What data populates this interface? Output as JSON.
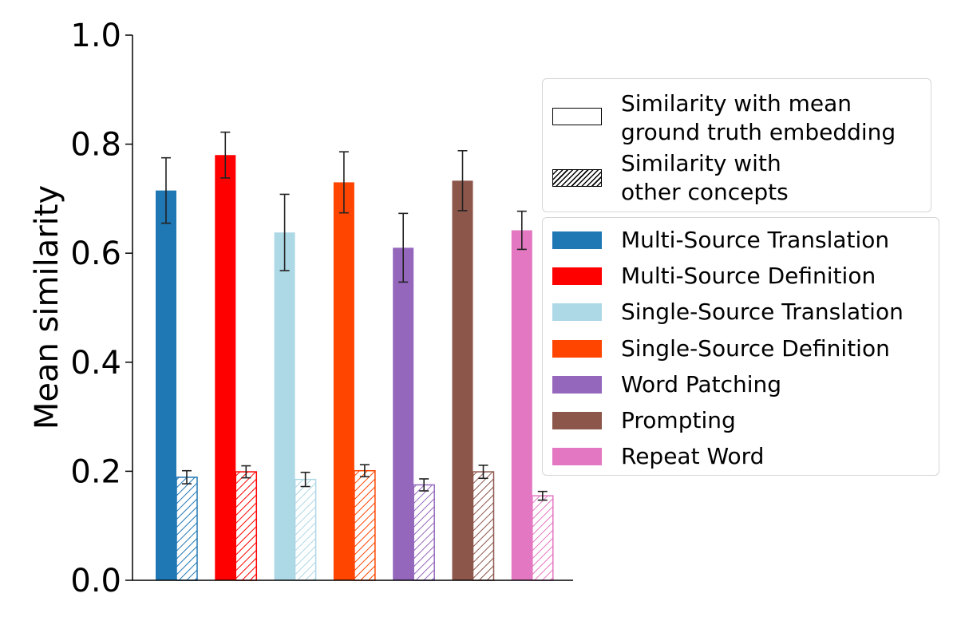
{
  "chart_data": {
    "type": "bar",
    "ylabel": "Mean similarity",
    "xlabel": "",
    "ylim": [
      0,
      1.0
    ],
    "yticks": [
      "0.0",
      "0.2",
      "0.4",
      "0.6",
      "0.8",
      "1.0"
    ],
    "grid": false,
    "categories": [
      "Multi-Source Translation",
      "Multi-Source Definition",
      "Single-Source Translation",
      "Single-Source Definition",
      "Word Patching",
      "Prompting",
      "Repeat Word"
    ],
    "colors": [
      "#1f77b4",
      "#ff0000",
      "#add8e6",
      "#ff4500",
      "#9467bd",
      "#8c564b",
      "#e377c2"
    ],
    "series": [
      {
        "name": "Similarity with mean\nground truth embedding",
        "style": "solid",
        "values": [
          0.715,
          0.78,
          0.638,
          0.73,
          0.61,
          0.733,
          0.642
        ],
        "errors": [
          0.06,
          0.042,
          0.07,
          0.056,
          0.063,
          0.055,
          0.035
        ]
      },
      {
        "name": "Similarity with\nother concepts",
        "style": "hatched",
        "values": [
          0.189,
          0.199,
          0.185,
          0.201,
          0.175,
          0.199,
          0.155
        ],
        "errors": [
          0.012,
          0.011,
          0.013,
          0.011,
          0.011,
          0.012,
          0.008
        ]
      }
    ],
    "legend_style_placement": "right-upper",
    "legend_method_placement": "right-middle"
  }
}
